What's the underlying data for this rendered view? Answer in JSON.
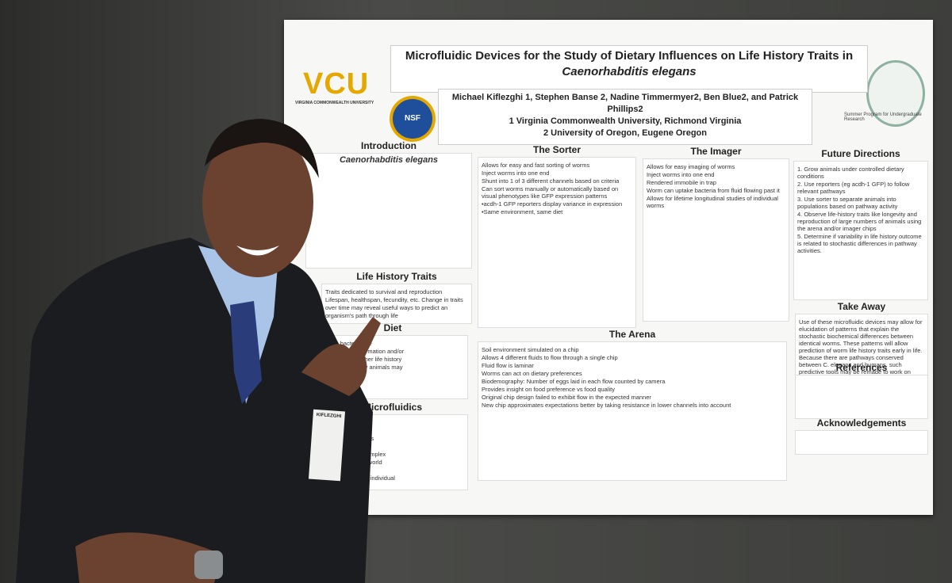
{
  "poster": {
    "logos": {
      "vcu": "VCU",
      "vcu_full": "VIRGINIA COMMONWEALTH UNIVERSITY",
      "nsf": "NSF",
      "oregon": "Summer Program for Undergraduate Research"
    },
    "title_line1": "Microfluidic Devices for the Study of Dietary Influences on Life History Traits in",
    "title_line2": "Caenorhabditis elegans",
    "authors": "Michael Kiflezghi 1, Stephen Banse 2, Nadine Timmermyer2, Ben Blue2, and Patrick Phillips2",
    "affiliations": [
      "1 Virginia Commonwealth University, Richmond Virginia",
      "2 University of Oregon, Eugene Oregon"
    ],
    "sections": [
      {
        "heading": "Introduction",
        "subheading": "Caenorhabditis elegans",
        "lines": []
      },
      {
        "heading": "Life History Traits",
        "lines": [
          "Traits dedicated to survival and reproduction",
          "Lifespan, healthspan, fecundity, etc. Change in traits",
          "over time may reveal useful ways to predict an",
          "organism's path through life"
        ]
      },
      {
        "heading": "Diet",
        "lines": [
          "ists on bacteria like",
          "leads to dauer formation and/or",
          "may influence other life history",
          "influence in many animals may",
          "l patterns"
        ]
      },
      {
        "heading": "Microfluidics",
        "lines": [
          "hes (µl)",
          "e in batches",
          "small as 10 microns",
          "tal control",
          "ign of arbitrarily complex",
          "s to simulate real world",
          "put",
          "worm studies with individual"
        ]
      },
      {
        "heading": "The Sorter",
        "lines": [
          "Allows for easy and fast sorting of worms",
          "Inject worms into one end",
          "Shunt into 1 of 3 different channels based on criteria",
          "Can sort worms manually or automatically based on visual phenotypes like GFP expression patterns",
          "•acdh-1 GFP reporters display variance in expression",
          "•Same environment, same diet"
        ]
      },
      {
        "heading": "The Imager",
        "lines": [
          "Allows for easy imaging of worms",
          "Inject worms into one end",
          "Rendered immobile in trap",
          "Worm can uptake bacteria from fluid flowing past it",
          "Allows for lifetime longitudinal studies of individual worms"
        ]
      },
      {
        "heading": "Future Directions",
        "lines": [
          "1. Grow animals under controlled dietary conditions",
          "2. Use reporters (eg acdh-1 GFP) to follow relevant pathways",
          "3. Use sorter to separate animals into populations based on pathway activity",
          "4. Observe life-history traits like longevity and reproduction of large numbers of animals using the arena and/or imager chips",
          "5. Determine if variability in life history outcome is related to stochastic differences in pathway activities."
        ]
      },
      {
        "heading": "Take Away",
        "lines": [
          "Use of these microfluidic devices may allow for elucidation of patterns that explain the stochastic biochemical differences between identical worms. These patterns will allow prediction of worm life history traits early in life. Because there are pathways conserved between C. elegans and humans, such predictive tools may be remade to work on humans."
        ]
      },
      {
        "heading": "References",
        "lines": []
      },
      {
        "heading": "Acknowledgements",
        "lines": []
      },
      {
        "heading": "The Arena",
        "lines": [
          "Soil environment simulated on a chip",
          "Allows 4 different fluids to flow through a single chip",
          "Fluid flow is laminar",
          "Worms can act on dietary preferences",
          "Biodemography: Number of eggs laid in each flow counted by camera",
          "Provides insight on food preference vs food quality",
          "Original chip design failed to exhibit flow in the expected manner",
          "New chip approximates expectations better by taking resistance in lower channels into account"
        ]
      }
    ]
  },
  "name_badge": "KIFLEZGHI"
}
